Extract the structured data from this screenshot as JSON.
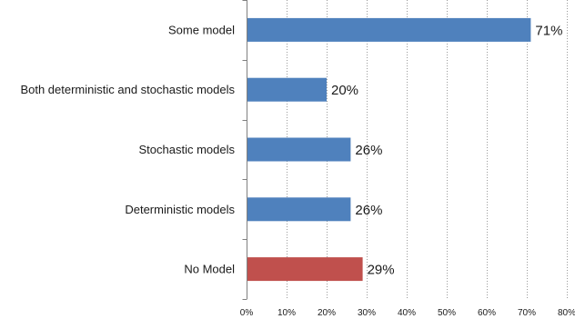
{
  "chart_data": {
    "type": "bar",
    "orientation": "horizontal",
    "categories": [
      "Some model",
      "Both deterministic and stochastic models",
      "Stochastic models",
      "Deterministic models",
      "No Model"
    ],
    "values": [
      71,
      20,
      26,
      26,
      29
    ],
    "data_labels": [
      "71%",
      "20%",
      "26%",
      "26%",
      "29%"
    ],
    "bar_colors": [
      "#4F81BD",
      "#4F81BD",
      "#4F81BD",
      "#4F81BD",
      "#C0504D"
    ],
    "xlim": [
      0,
      80
    ],
    "xticks": [
      0,
      10,
      20,
      30,
      40,
      50,
      60,
      70,
      80
    ],
    "xtick_labels": [
      "0%",
      "10%",
      "20%",
      "30%",
      "40%",
      "50%",
      "60%",
      "70%",
      "80%"
    ],
    "grid": "vertical dotted",
    "title": "",
    "xlabel": "",
    "ylabel": "",
    "legend": "none"
  }
}
